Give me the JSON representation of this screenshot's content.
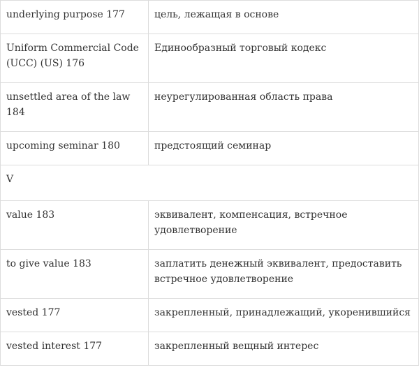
{
  "glossary": {
    "rows": [
      {
        "term": "underlying purpose 177",
        "translation": "цель, лежащая в основе"
      },
      {
        "term": "Uniform Commercial Code (UCC) (US) 176",
        "translation": "Единообразный торговый кодекс"
      },
      {
        "term": "unsettled area of the law 184",
        "translation": "неурегулированная область права"
      },
      {
        "term": "upcoming seminar 180",
        "translation": "предстоящий семинар"
      },
      {
        "letter": "V"
      },
      {
        "term": "value 183",
        "translation": "эквивалент, компенсация, встречное удовлетворение"
      },
      {
        "term": "to give value 183",
        "translation": "заплатить денежный эквивалент, предоставить встречное удовлетворение"
      },
      {
        "term": "vested 177",
        "translation": "закрепленный, принадлежащий, укоренившийся"
      },
      {
        "term": "vested interest 177",
        "translation": "закрепленный вещный интерес"
      }
    ]
  }
}
